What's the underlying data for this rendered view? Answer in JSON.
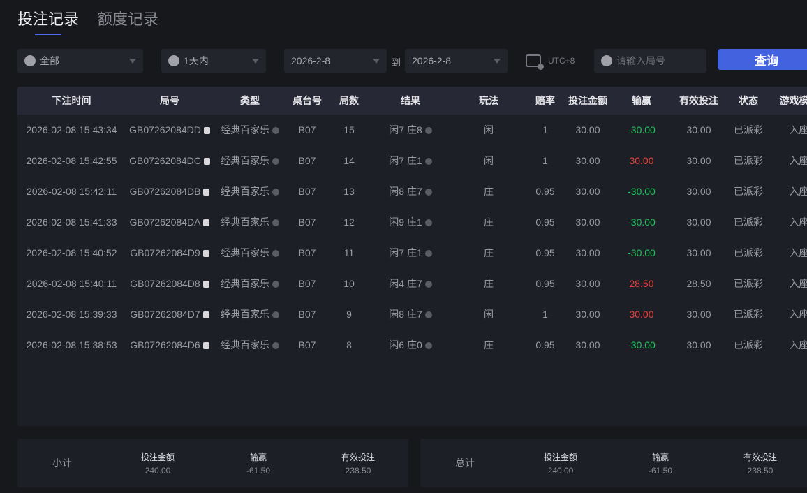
{
  "tabs": [
    {
      "label": "投注记录",
      "active": true
    },
    {
      "label": "额度记录",
      "active": false
    }
  ],
  "filters": {
    "game": "全部",
    "period": "1天内",
    "start_date": "2026-2-8",
    "to_label": "到",
    "end_date": "2026-2-8",
    "timezone": "UTC+8",
    "round_placeholder": "请输入局号",
    "query_label": "查询"
  },
  "table": {
    "headers": [
      "下注时间",
      "局号",
      "类型",
      "桌台号",
      "局数",
      "结果",
      "玩法",
      "赔率",
      "投注金额",
      "输赢",
      "有效投注",
      "状态",
      "游戏模式"
    ],
    "rows": [
      [
        "2026-02-08 15:43:34",
        "GB07262084DD",
        "经典百家乐",
        "B07",
        "15",
        "闲7 庄8",
        "闲",
        "1",
        "30.00",
        "-30.00",
        "30.00",
        "已派彩",
        "入座"
      ],
      [
        "2026-02-08 15:42:55",
        "GB07262084DC",
        "经典百家乐",
        "B07",
        "14",
        "闲7 庄1",
        "闲",
        "1",
        "30.00",
        "30.00",
        "30.00",
        "已派彩",
        "入座"
      ],
      [
        "2026-02-08 15:42:11",
        "GB07262084DB",
        "经典百家乐",
        "B07",
        "13",
        "闲8 庄7",
        "庄",
        "0.95",
        "30.00",
        "-30.00",
        "30.00",
        "已派彩",
        "入座"
      ],
      [
        "2026-02-08 15:41:33",
        "GB07262084DA",
        "经典百家乐",
        "B07",
        "12",
        "闲9 庄1",
        "庄",
        "0.95",
        "30.00",
        "-30.00",
        "30.00",
        "已派彩",
        "入座"
      ],
      [
        "2026-02-08 15:40:52",
        "GB07262084D9",
        "经典百家乐",
        "B07",
        "11",
        "闲7 庄1",
        "庄",
        "0.95",
        "30.00",
        "-30.00",
        "30.00",
        "已派彩",
        "入座"
      ],
      [
        "2026-02-08 15:40:11",
        "GB07262084D8",
        "经典百家乐",
        "B07",
        "10",
        "闲4 庄7",
        "庄",
        "0.95",
        "30.00",
        "28.50",
        "28.50",
        "已派彩",
        "入座"
      ],
      [
        "2026-02-08 15:39:33",
        "GB07262084D7",
        "经典百家乐",
        "B07",
        "9",
        "闲8 庄7",
        "闲",
        "1",
        "30.00",
        "30.00",
        "30.00",
        "已派彩",
        "入座"
      ],
      [
        "2026-02-08 15:38:53",
        "GB07262084D6",
        "经典百家乐",
        "B07",
        "8",
        "闲6 庄0",
        "庄",
        "0.95",
        "30.00",
        "-30.00",
        "30.00",
        "已派彩",
        "入座"
      ]
    ]
  },
  "subtotal": {
    "label": "小计",
    "bet_label": "投注金额",
    "bet": "240.00",
    "win_label": "输赢",
    "win": "-61.50",
    "valid_label": "有效投注",
    "valid": "238.50"
  },
  "total": {
    "label": "总计",
    "bet_label": "投注金额",
    "bet": "240.00",
    "win_label": "输赢",
    "win": "-61.50",
    "valid_label": "有效投注",
    "valid": "238.50"
  },
  "colors": {
    "accent": "#4262e0",
    "loss": "#1fc25a",
    "win": "#e8413b"
  }
}
